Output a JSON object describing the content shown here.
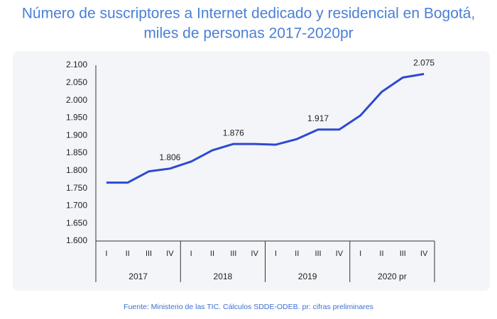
{
  "chart_data": {
    "type": "line",
    "title": [
      "Número de suscriptores a Internet dedicado y residencial en Bogotá,",
      "miles de personas 2017-2020pr"
    ],
    "categories": [
      "I",
      "II",
      "III",
      "IV",
      "I",
      "II",
      "III",
      "IV",
      "I",
      "II",
      "III",
      "IV",
      "I",
      "II",
      "III",
      "IV"
    ],
    "groups": [
      "2017",
      "2018",
      "2019",
      "2020 pr"
    ],
    "values": [
      1766,
      1766,
      1798,
      1806,
      1826,
      1858,
      1876,
      1876,
      1874,
      1890,
      1917,
      1917,
      1957,
      2024,
      2065,
      2075
    ],
    "value_labels": [
      null,
      null,
      null,
      "1.806",
      null,
      null,
      "1.876",
      null,
      null,
      null,
      "1.917",
      null,
      null,
      null,
      null,
      "2.075"
    ],
    "color": "#2f49d1",
    "ylim": [
      1600,
      2100
    ],
    "yticks": [
      {
        "value": 1600,
        "label": "1.600"
      },
      {
        "value": 1650,
        "label": "1.650"
      },
      {
        "value": 1700,
        "label": "1.700"
      },
      {
        "value": 1750,
        "label": "1.750"
      },
      {
        "value": 1800,
        "label": "1.800"
      },
      {
        "value": 1850,
        "label": "1.850"
      },
      {
        "value": 1900,
        "label": "1.900"
      },
      {
        "value": 1950,
        "label": "1.950"
      },
      {
        "value": 2000,
        "label": "2.000"
      },
      {
        "value": 2050,
        "label": "2.050"
      },
      {
        "value": 2100,
        "label": "2.100"
      }
    ],
    "grid": false,
    "source": "Fuente: Ministerio de las TIC. Cálculos SDDE-ODEB. pr: cifras preliminares"
  }
}
